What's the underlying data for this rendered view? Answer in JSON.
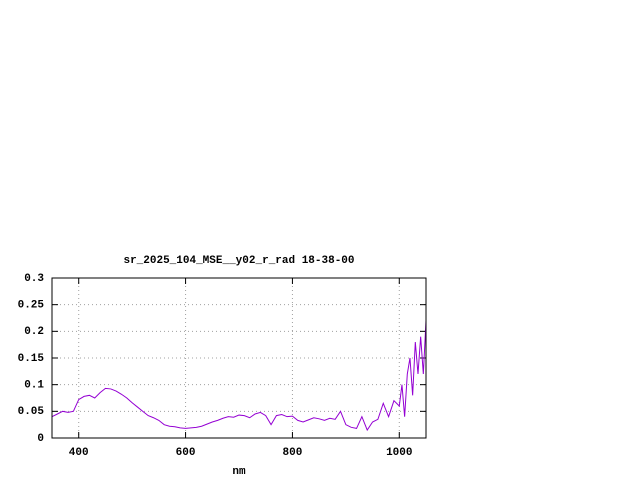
{
  "chart_data": {
    "type": "line",
    "title": "sr_2025_104_MSE__y02_r_rad 18-38-00",
    "x_label": "nm",
    "x": [
      350,
      360,
      370,
      380,
      390,
      400,
      410,
      420,
      430,
      440,
      450,
      460,
      470,
      480,
      490,
      500,
      510,
      520,
      530,
      540,
      550,
      560,
      570,
      580,
      590,
      600,
      610,
      620,
      630,
      640,
      650,
      660,
      670,
      680,
      690,
      700,
      710,
      720,
      730,
      740,
      750,
      760,
      770,
      780,
      790,
      800,
      810,
      820,
      830,
      840,
      850,
      860,
      870,
      880,
      890,
      900,
      910,
      920,
      930,
      940,
      950,
      960,
      970,
      980,
      990,
      1000,
      1005,
      1010,
      1015,
      1020,
      1025,
      1030,
      1035,
      1040,
      1045,
      1050
    ],
    "series": [
      {
        "color": "#9400d3",
        "values": [
          0.04,
          0.045,
          0.05,
          0.048,
          0.05,
          0.072,
          0.078,
          0.08,
          0.075,
          0.085,
          0.093,
          0.092,
          0.088,
          0.082,
          0.075,
          0.066,
          0.058,
          0.05,
          0.042,
          0.038,
          0.033,
          0.025,
          0.022,
          0.021,
          0.019,
          0.018,
          0.019,
          0.02,
          0.022,
          0.026,
          0.03,
          0.033,
          0.037,
          0.04,
          0.039,
          0.043,
          0.042,
          0.038,
          0.045,
          0.048,
          0.042,
          0.025,
          0.042,
          0.044,
          0.04,
          0.041,
          0.033,
          0.03,
          0.034,
          0.038,
          0.036,
          0.033,
          0.037,
          0.035,
          0.05,
          0.025,
          0.02,
          0.018,
          0.04,
          0.015,
          0.03,
          0.035,
          0.065,
          0.04,
          0.07,
          0.06,
          0.1,
          0.04,
          0.12,
          0.15,
          0.08,
          0.18,
          0.12,
          0.19,
          0.12,
          0.22
        ]
      }
    ],
    "xlim": [
      350,
      1050
    ],
    "ylim": [
      0,
      0.3
    ],
    "xticks": [
      400,
      600,
      800,
      1000
    ],
    "yticks": [
      0,
      0.05,
      0.1,
      0.15,
      0.2,
      0.25,
      0.3
    ],
    "grid": true
  }
}
